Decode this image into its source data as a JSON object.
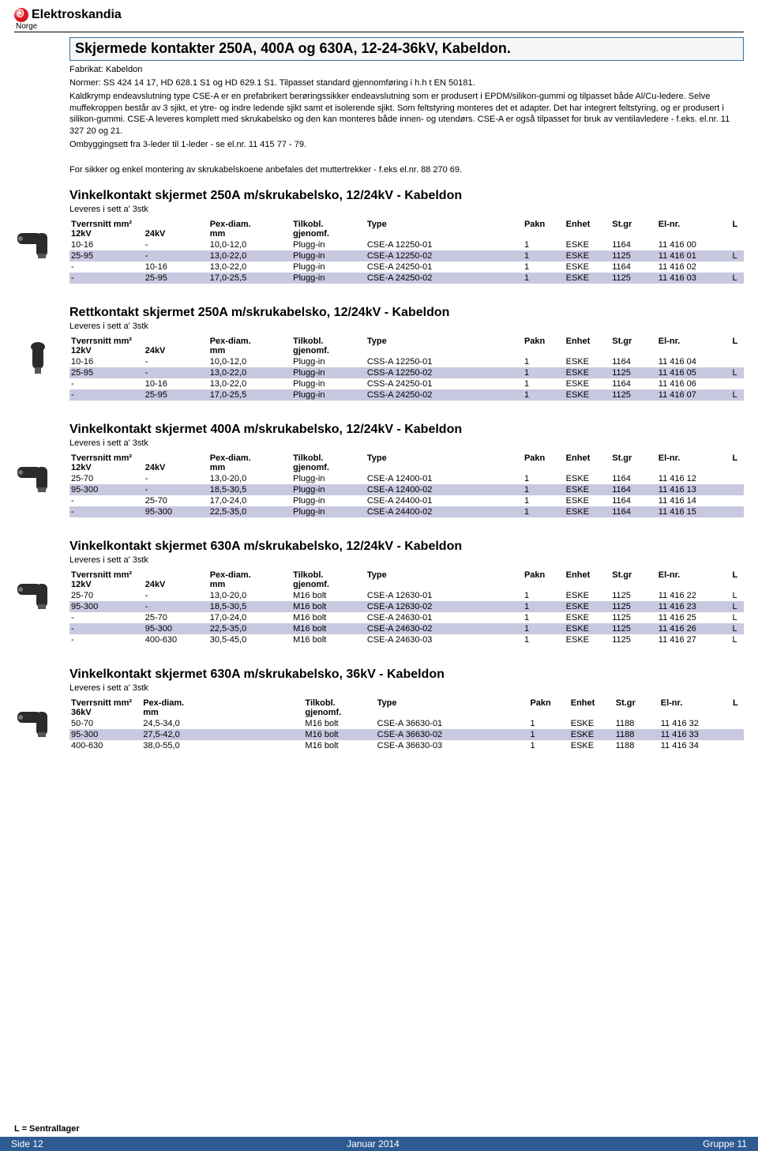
{
  "colors": {
    "band": "#c8c8e0",
    "footer_bar": "#2f5b93",
    "title_border": "#3a6ea5",
    "logo_red": "#e31b23"
  },
  "logo": {
    "brand": "Elektroskandia",
    "region": "Norge"
  },
  "title": "Skjermede kontakter 250A, 400A og 630A, 12-24-36kV, Kabeldon.",
  "meta": {
    "fabrikat": "Fabrikat: Kabeldon",
    "normer": "Normer: SS 424 14 17, HD 628.1 S1 og HD 629.1 S1. Tilpasset standard gjennomføring i h.h t EN 50181.",
    "body": "Kaldkrymp endeavslutning type CSE-A er en prefabrikert berøringssikker endeavslutning som er produsert i EPDM/silikon-gummi og tilpasset både Al/Cu-ledere. Selve muffekroppen består av 3 sjikt, et ytre- og indre ledende sjikt samt et isolerende sjikt. Som feltstyring monteres det et adapter. Det har integrert feltstyring, og er produsert i silikon-gummi. CSE-A leveres komplett med skrukabelsko og den kan monteres både innen- og utendørs. CSE-A er også tilpasset for bruk av ventilavledere - f.eks. el.nr. 11 327 20 og 21.",
    "ombygg": "Ombyggingsett fra 3-leder til 1-leder - se el.nr. 11 415 77 - 79.",
    "montering": "For sikker og enkel montering av skrukabelskoene anbefales det muttertrekker - f.eks el.nr. 88 270 69."
  },
  "headers_std": {
    "c1a": "Tverrsnitt mm²",
    "c1b": "12kV",
    "c2": "24kV",
    "c3a": "Pex-diam.",
    "c3b": "mm",
    "c4a": "Tilkobl.",
    "c4b": "gjenomf.",
    "c5": "Type",
    "c6": "Pakn",
    "c7": "Enhet",
    "c8": "St.gr",
    "c9": "El-nr.",
    "c10": "L"
  },
  "headers_36": {
    "c1a": "Tverrsnitt mm²",
    "c1b": "36kV",
    "c3a": "Pex-diam.",
    "c3b": "mm",
    "c4a": "Tilkobl.",
    "c4b": "gjenomf.",
    "c5": "Type",
    "c6": "Pakn",
    "c7": "Enhet",
    "c8": "St.gr",
    "c9": "El-nr.",
    "c10": "L"
  },
  "sections": [
    {
      "title": "Vinkelkontakt skjermet 250A m/skrukabelsko, 12/24kV - Kabeldon",
      "sub": "Leveres i sett a' 3stk",
      "thumb": "angle",
      "rows": [
        {
          "kv12": "10-16",
          "kv24": "-",
          "pex": "10,0-12,0",
          "tilk": "Plugg-in",
          "type": "CSE-A 12250-01",
          "pakn": "1",
          "enhet": "ESKE",
          "stgr": "1164",
          "elnr": "11 416 00",
          "l": "",
          "shade": false
        },
        {
          "kv12": "25-95",
          "kv24": "-",
          "pex": "13,0-22,0",
          "tilk": "Plugg-in",
          "type": "CSE-A 12250-02",
          "pakn": "1",
          "enhet": "ESKE",
          "stgr": "1125",
          "elnr": "11 416 01",
          "l": "L",
          "shade": true
        },
        {
          "kv12": "-",
          "kv24": "10-16",
          "pex": "13,0-22,0",
          "tilk": "Plugg-in",
          "type": "CSE-A 24250-01",
          "pakn": "1",
          "enhet": "ESKE",
          "stgr": "1164",
          "elnr": "11 416 02",
          "l": "",
          "shade": false
        },
        {
          "kv12": "-",
          "kv24": "25-95",
          "pex": "17,0-25,5",
          "tilk": "Plugg-in",
          "type": "CSE-A 24250-02",
          "pakn": "1",
          "enhet": "ESKE",
          "stgr": "1125",
          "elnr": "11 416 03",
          "l": "L",
          "shade": true
        }
      ]
    },
    {
      "title": "Rettkontakt skjermet 250A m/skrukabelsko, 12/24kV - Kabeldon",
      "sub": "Leveres i sett a' 3stk",
      "thumb": "straight",
      "rows": [
        {
          "kv12": "10-16",
          "kv24": "-",
          "pex": "10,0-12,0",
          "tilk": "Plugg-in",
          "type": "CSS-A 12250-01",
          "pakn": "1",
          "enhet": "ESKE",
          "stgr": "1164",
          "elnr": "11 416 04",
          "l": "",
          "shade": false
        },
        {
          "kv12": "25-95",
          "kv24": "-",
          "pex": "13,0-22,0",
          "tilk": "Plugg-in",
          "type": "CSS-A 12250-02",
          "pakn": "1",
          "enhet": "ESKE",
          "stgr": "1125",
          "elnr": "11 416 05",
          "l": "L",
          "shade": true
        },
        {
          "kv12": "-",
          "kv24": "10-16",
          "pex": "13,0-22,0",
          "tilk": "Plugg-in",
          "type": "CSS-A 24250-01",
          "pakn": "1",
          "enhet": "ESKE",
          "stgr": "1164",
          "elnr": "11 416 06",
          "l": "",
          "shade": false
        },
        {
          "kv12": "-",
          "kv24": "25-95",
          "pex": "17,0-25,5",
          "tilk": "Plugg-in",
          "type": "CSS-A 24250-02",
          "pakn": "1",
          "enhet": "ESKE",
          "stgr": "1125",
          "elnr": "11 416 07",
          "l": "L",
          "shade": true
        }
      ]
    },
    {
      "title": "Vinkelkontakt skjermet 400A m/skrukabelsko, 12/24kV - Kabeldon",
      "sub": "Leveres i sett a' 3stk",
      "thumb": "angle",
      "rows": [
        {
          "kv12": "25-70",
          "kv24": "-",
          "pex": "13,0-20,0",
          "tilk": "Plugg-in",
          "type": "CSE-A 12400-01",
          "pakn": "1",
          "enhet": "ESKE",
          "stgr": "1164",
          "elnr": "11 416 12",
          "l": "",
          "shade": false
        },
        {
          "kv12": "95-300",
          "kv24": "-",
          "pex": "18,5-30,5",
          "tilk": "Plugg-in",
          "type": "CSE-A 12400-02",
          "pakn": "1",
          "enhet": "ESKE",
          "stgr": "1164",
          "elnr": "11 416 13",
          "l": "",
          "shade": true
        },
        {
          "kv12": "-",
          "kv24": "25-70",
          "pex": "17,0-24,0",
          "tilk": "Plugg-in",
          "type": "CSE-A 24400-01",
          "pakn": "1",
          "enhet": "ESKE",
          "stgr": "1164",
          "elnr": "11 416 14",
          "l": "",
          "shade": false
        },
        {
          "kv12": "-",
          "kv24": "95-300",
          "pex": "22,5-35,0",
          "tilk": "Plugg-in",
          "type": "CSE-A 24400-02",
          "pakn": "1",
          "enhet": "ESKE",
          "stgr": "1164",
          "elnr": "11 416 15",
          "l": "",
          "shade": true
        }
      ]
    },
    {
      "title": "Vinkelkontakt skjermet 630A m/skrukabelsko, 12/24kV - Kabeldon",
      "sub": "Leveres i sett a' 3stk",
      "thumb": "angle-big",
      "rows": [
        {
          "kv12": "25-70",
          "kv24": "-",
          "pex": "13,0-20,0",
          "tilk": "M16 bolt",
          "type": "CSE-A 12630-01",
          "pakn": "1",
          "enhet": "ESKE",
          "stgr": "1125",
          "elnr": "11 416 22",
          "l": "L",
          "shade": false
        },
        {
          "kv12": "95-300",
          "kv24": "-",
          "pex": "18,5-30,5",
          "tilk": "M16 bolt",
          "type": "CSE-A 12630-02",
          "pakn": "1",
          "enhet": "ESKE",
          "stgr": "1125",
          "elnr": "11 416 23",
          "l": "L",
          "shade": true
        },
        {
          "kv12": "-",
          "kv24": "25-70",
          "pex": "17,0-24,0",
          "tilk": "M16 bolt",
          "type": "CSE-A 24630-01",
          "pakn": "1",
          "enhet": "ESKE",
          "stgr": "1125",
          "elnr": "11 416 25",
          "l": "L",
          "shade": false
        },
        {
          "kv12": "-",
          "kv24": "95-300",
          "pex": "22,5-35,0",
          "tilk": "M16 bolt",
          "type": "CSE-A 24630-02",
          "pakn": "1",
          "enhet": "ESKE",
          "stgr": "1125",
          "elnr": "11 416 26",
          "l": "L",
          "shade": true
        },
        {
          "kv12": "-",
          "kv24": "400-630",
          "pex": "30,5-45,0",
          "tilk": "M16 bolt",
          "type": "CSE-A 24630-03",
          "pakn": "1",
          "enhet": "ESKE",
          "stgr": "1125",
          "elnr": "11 416 27",
          "l": "L",
          "shade": false
        }
      ]
    },
    {
      "title": "Vinkelkontakt skjermet 630A m/skrukabelsko, 36kV - Kabeldon",
      "sub": "Leveres i sett a' 3stk",
      "thumb": "angle-big",
      "mode": "36",
      "rows": [
        {
          "kv12": "50-70",
          "kv24": "24,5-34,0",
          "pex": "",
          "tilk": "M16 bolt",
          "type": "CSE-A 36630-01",
          "pakn": "1",
          "enhet": "ESKE",
          "stgr": "1188",
          "elnr": "11 416 32",
          "l": "",
          "shade": false
        },
        {
          "kv12": "95-300",
          "kv24": "27,5-42,0",
          "pex": "",
          "tilk": "M16 bolt",
          "type": "CSE-A 36630-02",
          "pakn": "1",
          "enhet": "ESKE",
          "stgr": "1188",
          "elnr": "11 416 33",
          "l": "",
          "shade": true
        },
        {
          "kv12": "400-630",
          "kv24": "38,0-55,0",
          "pex": "",
          "tilk": "M16 bolt",
          "type": "CSE-A 36630-03",
          "pakn": "1",
          "enhet": "ESKE",
          "stgr": "1188",
          "elnr": "11 416 34",
          "l": "",
          "shade": false
        }
      ]
    }
  ],
  "footer": {
    "note": "L = Sentrallager",
    "left_a": "Side",
    "left_b": "12",
    "center": "Januar 2014",
    "right": "Gruppe 11"
  }
}
